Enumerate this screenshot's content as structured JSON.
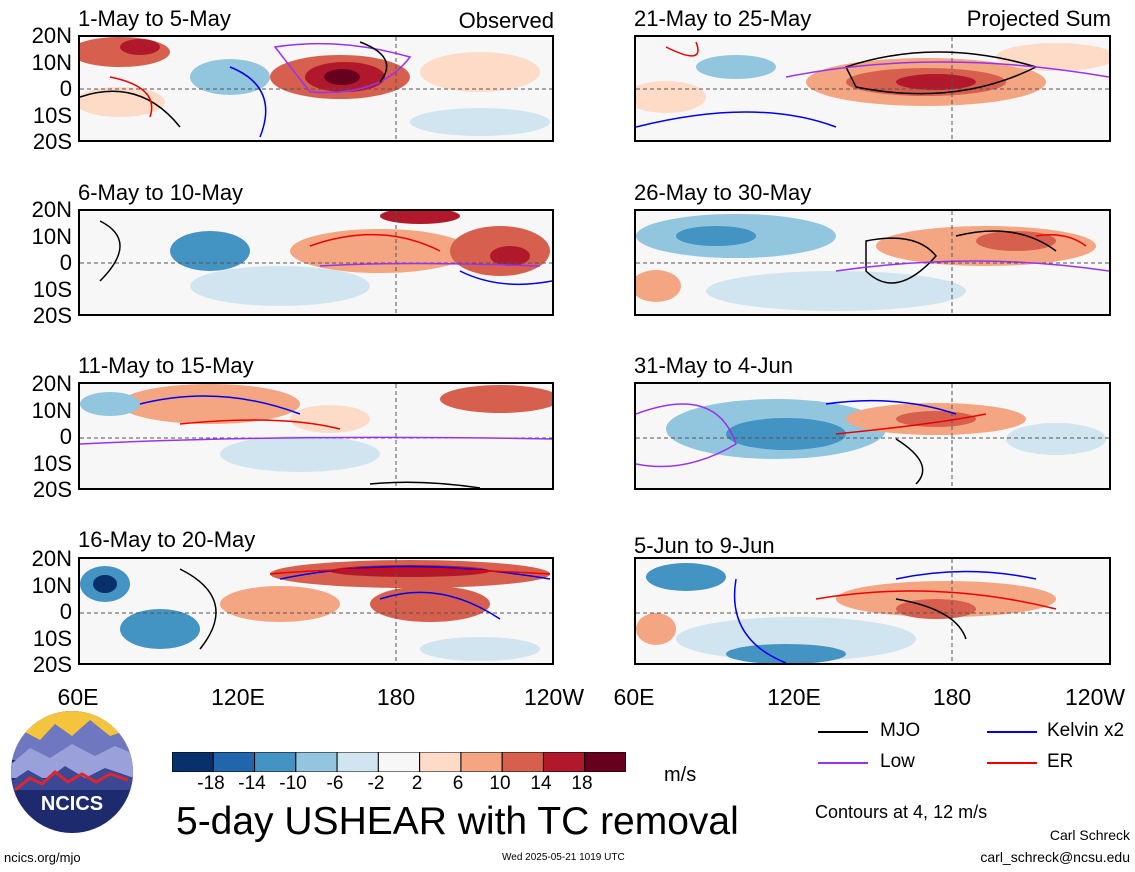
{
  "panels_left": [
    {
      "title": "1-May to 5-May",
      "tag": "Observed"
    },
    {
      "title": "6-May to 10-May",
      "tag": ""
    },
    {
      "title": "11-May to 15-May",
      "tag": ""
    },
    {
      "title": "16-May to 20-May",
      "tag": ""
    }
  ],
  "panels_right": [
    {
      "title": "21-May to 25-May",
      "tag": "Projected Sum"
    },
    {
      "title": "26-May to 30-May",
      "tag": ""
    },
    {
      "title": "31-May to 4-Jun",
      "tag": ""
    },
    {
      "title": "5-Jun to 9-Jun",
      "tag": ""
    }
  ],
  "lat_labels": [
    "20N",
    "10N",
    "0",
    "10S",
    "20S"
  ],
  "lon_labels": [
    "60E",
    "120E",
    "180",
    "120W"
  ],
  "colorbar": {
    "ticks": [
      "-18",
      "-14",
      "-10",
      "-6",
      "-2",
      "2",
      "6",
      "10",
      "14",
      "18"
    ],
    "colors": [
      "#08306b",
      "#2166ac",
      "#4393c3",
      "#92c5de",
      "#d1e5f0",
      "#f7f7f7",
      "#fddbc7",
      "#f4a582",
      "#d6604d",
      "#b2182b",
      "#67001f"
    ],
    "unit": "m/s"
  },
  "legend": [
    {
      "label": "MJO",
      "color": "#000000"
    },
    {
      "label": "Kelvin x2",
      "color": "#0000ee"
    },
    {
      "label": "Low",
      "color": "#9933ee"
    },
    {
      "label": "ER",
      "color": "#ee0000"
    }
  ],
  "contours_note": "Contours at 4, 12 m/s",
  "main_title": "5-day USHEAR with TC removal",
  "logo_text": "NCICS",
  "footer": {
    "site": "ncics.org/mjo",
    "timestamp": "Wed 2025-05-21 1019 UTC",
    "author": "Carl Schreck",
    "email": "carl_schreck@ncsu.edu"
  }
}
